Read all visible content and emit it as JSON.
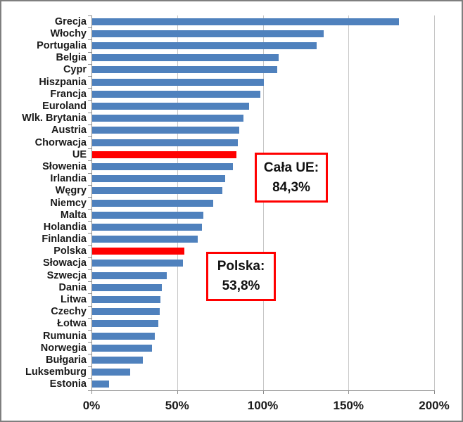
{
  "chart_data": {
    "type": "bar",
    "orientation": "horizontal",
    "title": "",
    "xlabel": "",
    "ylabel": "",
    "xlim": [
      0,
      200
    ],
    "grid": true,
    "x_ticks": [
      {
        "label": "0%",
        "value": 0
      },
      {
        "label": "50%",
        "value": 50
      },
      {
        "label": "100%",
        "value": 100
      },
      {
        "label": "150%",
        "value": 150
      },
      {
        "label": "200%",
        "value": 200
      }
    ],
    "categories": [
      "Grecja",
      "Włochy",
      "Portugalia",
      "Belgia",
      "Cypr",
      "Hiszpania",
      "Francja",
      "Euroland",
      "Wlk. Brytania",
      "Austria",
      "Chorwacja",
      "UE",
      "Słowenia",
      "Irlandia",
      "Węgry",
      "Niemcy",
      "Malta",
      "Holandia",
      "Finlandia",
      "Polska",
      "Słowacja",
      "Szwecja",
      "Dania",
      "Litwa",
      "Czechy",
      "Łotwa",
      "Rumunia",
      "Norwegia",
      "Bułgaria",
      "Luksemburg",
      "Estonia"
    ],
    "values": [
      179,
      135,
      131,
      109,
      108,
      100,
      98,
      91.5,
      88.5,
      86,
      85,
      84.3,
      82,
      77.5,
      76,
      70.5,
      65,
      64,
      61.5,
      53.8,
      53,
      43.5,
      40.5,
      40,
      39.5,
      38.5,
      36.5,
      35,
      29.5,
      22,
      10
    ],
    "value_suffix": "%",
    "highlight_categories": [
      "UE",
      "Polska"
    ],
    "colors": {
      "bar": "#4f81bd",
      "highlight": "#ff0000",
      "gridline": "#c6c6c6",
      "axis": "#8c8c8c",
      "frame": "#7f7f7f",
      "annotation_border": "#ff0000",
      "annotation_background": "#ffffff",
      "text": "#1a1a1a"
    },
    "legend": null,
    "annotations": [
      {
        "line1": "Cała UE:",
        "line2": "84,3%"
      },
      {
        "line1": "Polska:",
        "line2": "53,8%"
      }
    ]
  }
}
